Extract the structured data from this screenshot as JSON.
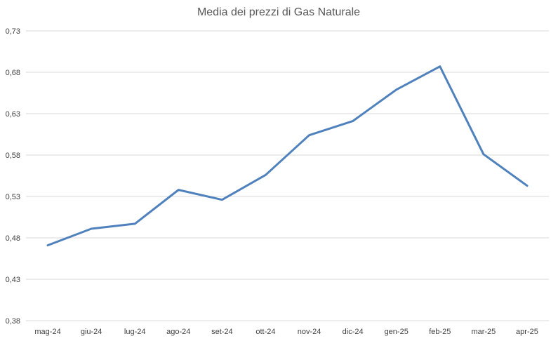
{
  "chart_data": {
    "type": "line",
    "title": "Media dei prezzi di Gas Naturale",
    "xlabel": "",
    "ylabel": "",
    "categories": [
      "mag-24",
      "giu-24",
      "lug-24",
      "ago-24",
      "set-24",
      "ott-24",
      "nov-24",
      "dic-24",
      "gen-25",
      "feb-25",
      "mar-25",
      "apr-25"
    ],
    "series": [
      {
        "values": [
          0.471,
          0.491,
          0.497,
          0.538,
          0.526,
          0.556,
          0.604,
          0.621,
          0.659,
          0.687,
          0.581,
          0.543
        ],
        "color": "#4f81bd"
      }
    ],
    "yticks": [
      "0,38",
      "0,43",
      "0,48",
      "0,53",
      "0,58",
      "0,63",
      "0,68",
      "0,73"
    ],
    "ytick_values": [
      0.38,
      0.43,
      0.48,
      0.53,
      0.58,
      0.63,
      0.68,
      0.73
    ],
    "ylim": [
      0.38,
      0.73
    ],
    "grid": true,
    "legend": "none"
  }
}
